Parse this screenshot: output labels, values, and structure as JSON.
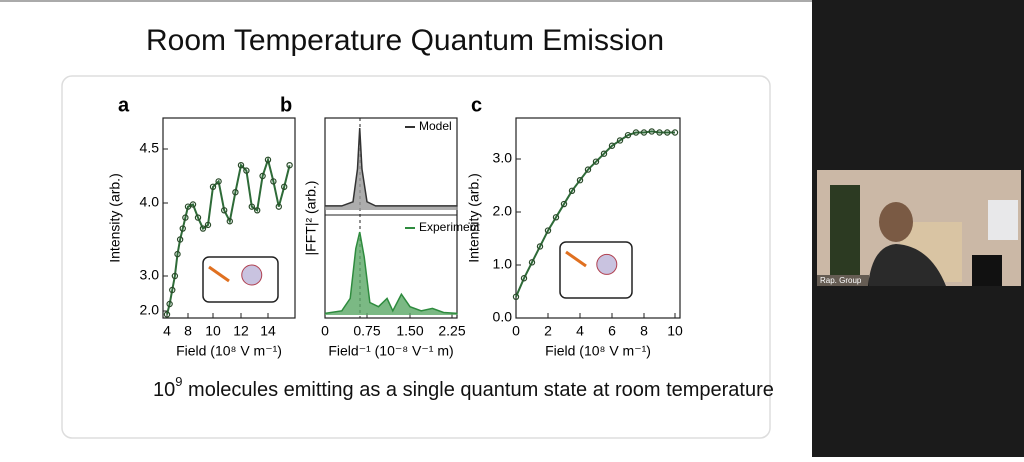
{
  "slide": {
    "title": "Room Temperature Quantum Emission",
    "caption": {
      "base": "10",
      "sup": "9",
      "rest": "molecules emitting as a single quantum state at room temperature"
    },
    "panels": [
      {
        "letter": "a",
        "ylabel": "Intensity (arb.)",
        "xlabel": "Field (10⁸ V m⁻¹)",
        "xticks": [
          4,
          8,
          10,
          12,
          14
        ],
        "yticks": [
          {
            "value": 2,
            "label": "2.0"
          },
          {
            "value": 3,
            "label": "3.0"
          },
          {
            "value": 4,
            "label": "4.0"
          },
          4.5
        ],
        "x": [
          4,
          4.5,
          5,
          5.5,
          6,
          6.5,
          7,
          7.5,
          8,
          8.4,
          8.8,
          9.2,
          9.6,
          10,
          10.4,
          10.8,
          11.2,
          11.6,
          12,
          12.4,
          12.8,
          13.2,
          13.6,
          14,
          14.4,
          14.8,
          15.2,
          15.6
        ],
        "y": [
          1.9,
          2.2,
          2.6,
          3.0,
          3.3,
          3.5,
          3.65,
          3.8,
          3.95,
          3.98,
          3.8,
          3.65,
          3.7,
          4.15,
          4.2,
          3.9,
          3.75,
          4.1,
          4.35,
          4.3,
          3.95,
          3.9,
          4.25,
          4.4,
          4.2,
          3.95,
          4.15,
          4.35
        ]
      },
      {
        "letter": "b",
        "ylabel": "|FFT|² (arb.)",
        "xlabel": "Field⁻¹ (10⁻⁸ V⁻¹ m)",
        "xticks": [
          0,
          0.75,
          {
            "value": 1.5,
            "label": "1.50"
          },
          2.25
        ],
        "series": [
          {
            "name": "Model",
            "color": "#333333",
            "x": [
              0,
              0.3,
              0.5,
              0.58,
              0.62,
              0.66,
              0.75,
              0.9,
              1.2,
              2.35
            ],
            "y": [
              0.05,
              0.05,
              0.1,
              0.5,
              1,
              0.5,
              0.1,
              0.05,
              0.05,
              0.05
            ]
          },
          {
            "name": "Experiment",
            "color": "#2e8b3e",
            "x": [
              0,
              0.3,
              0.45,
              0.55,
              0.62,
              0.7,
              0.8,
              0.95,
              1.1,
              1.2,
              1.35,
              1.5,
              1.7,
              1.9,
              2.1,
              2.35
            ],
            "y": [
              0.02,
              0.05,
              0.2,
              0.8,
              1,
              0.7,
              0.15,
              0.1,
              0.2,
              0.05,
              0.25,
              0.1,
              0.05,
              0.08,
              0.03,
              0.02
            ]
          }
        ]
      },
      {
        "letter": "c",
        "ylabel": "Intensity (arb.)",
        "xlabel": "Field (10⁸ V m⁻¹)",
        "xticks": [
          0,
          2,
          4,
          6,
          8,
          10
        ],
        "yticks": [
          {
            "value": 0,
            "label": "0.0"
          },
          {
            "value": 1,
            "label": "1.0"
          },
          {
            "value": 2,
            "label": "2.0"
          },
          {
            "value": 3,
            "label": "3.0"
          }
        ],
        "x": [
          0,
          0.5,
          1,
          1.5,
          2,
          2.5,
          3,
          3.5,
          4,
          4.5,
          5,
          5.5,
          6,
          6.5,
          7,
          7.5,
          8,
          8.5,
          9,
          9.5,
          10
        ],
        "y": [
          0.4,
          0.75,
          1.05,
          1.35,
          1.65,
          1.9,
          2.15,
          2.4,
          2.6,
          2.8,
          2.95,
          3.1,
          3.25,
          3.35,
          3.45,
          3.5,
          3.5,
          3.52,
          3.5,
          3.5,
          3.5
        ]
      }
    ]
  },
  "video": {
    "participant": "Rap. Group"
  }
}
